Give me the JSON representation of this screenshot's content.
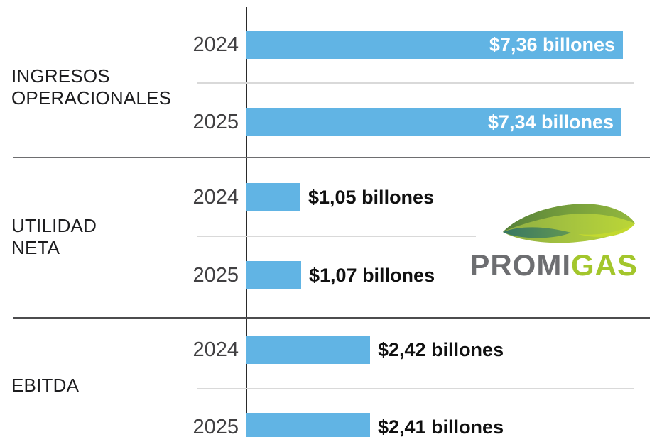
{
  "background": "#ffffff",
  "chart_data": {
    "type": "bar",
    "orientation": "horizontal",
    "value_unit": "billones de pesos",
    "bar_color": "#61b4e4",
    "axis_color": "#2a2a2a",
    "legend": "none",
    "grid": "off",
    "x_range_billones": [
      0,
      7.36
    ],
    "groups": [
      {
        "category_lines": [
          "INGRESOS",
          "OPERACIONALES"
        ],
        "bars": [
          {
            "year": "2024",
            "value": 7.36,
            "label": "$7,36 billones",
            "label_inside": true
          },
          {
            "year": "2025",
            "value": 7.34,
            "label": "$7,34 billones",
            "label_inside": true
          }
        ]
      },
      {
        "category_lines": [
          "UTILIDAD",
          "NETA"
        ],
        "bars": [
          {
            "year": "2024",
            "value": 1.05,
            "label": "$1,05 billones",
            "label_inside": false
          },
          {
            "year": "2025",
            "value": 1.07,
            "label": "$1,07 billones",
            "label_inside": false
          }
        ]
      },
      {
        "category_lines": [
          "EBITDA"
        ],
        "bars": [
          {
            "year": "2024",
            "value": 2.42,
            "label": "$2,42 billones",
            "label_inside": false
          },
          {
            "year": "2025",
            "value": 2.41,
            "label": "$2,41 billones",
            "label_inside": false
          }
        ]
      }
    ]
  },
  "logo": {
    "name": "Promigas",
    "text_primary": "PROMI",
    "text_accent": "GAS",
    "primary_color": "#6d6e71",
    "accent_color": "#a3c62c",
    "icon": "leaf-wave-icon"
  }
}
